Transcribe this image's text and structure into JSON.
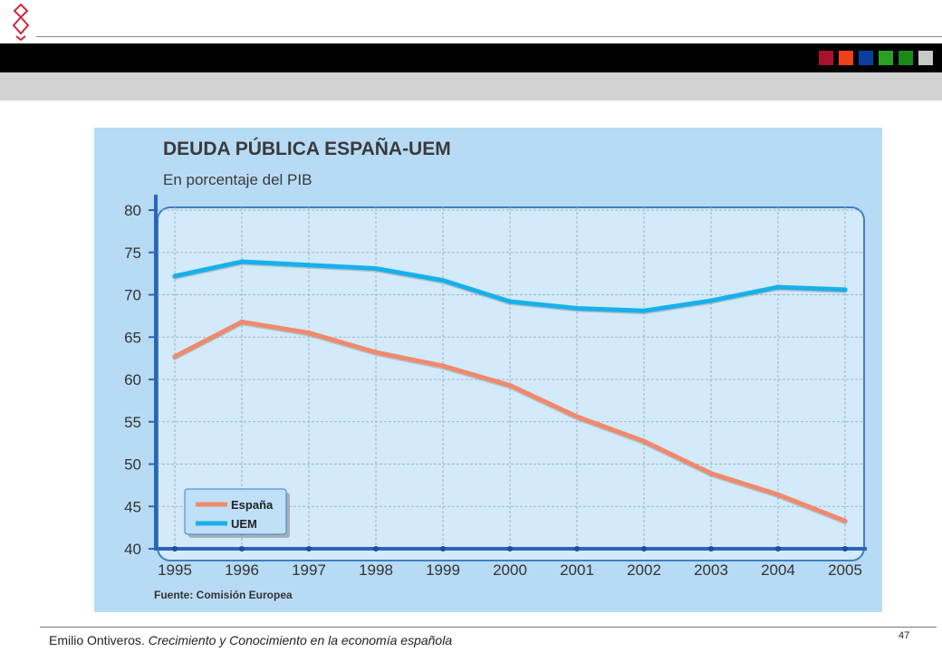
{
  "header": {
    "color_squares": [
      "#a8102b",
      "#f0401a",
      "#0a3fa0",
      "#2aa022",
      "#1a8a1a",
      "#c8c8c8"
    ]
  },
  "chart_data": {
    "type": "line",
    "title": "DEUDA PÚBLICA ESPAÑA-UEM",
    "subtitle": "En porcentaje del PIB",
    "source": "Fuente: Comisión Europea",
    "x": [
      1995,
      1996,
      1997,
      1998,
      1999,
      2000,
      2001,
      2002,
      2003,
      2004,
      2005
    ],
    "x_tick_labels": [
      "1995",
      "1996",
      "1997",
      "1998",
      "1999",
      "2000",
      "2001",
      "2002",
      "2003",
      "2004",
      "2005"
    ],
    "y_ticks": [
      40,
      45,
      50,
      55,
      60,
      65,
      70,
      75,
      80
    ],
    "ylim": [
      40,
      80
    ],
    "grid": true,
    "legend_position": "bottom-left",
    "series": [
      {
        "name": "España",
        "color": "#ef8a6c",
        "values": [
          62.7,
          66.8,
          65.5,
          63.2,
          61.6,
          59.3,
          55.6,
          52.7,
          48.9,
          46.4,
          43.3
        ]
      },
      {
        "name": "UEM",
        "color": "#18b0ea",
        "values": [
          72.2,
          73.9,
          73.5,
          73.1,
          71.7,
          69.2,
          68.4,
          68.1,
          69.3,
          70.9,
          70.6
        ]
      }
    ]
  },
  "footer": {
    "author": "Emilio Ontiveros. ",
    "book_title": "Crecimiento y Conocimiento en  la economía española",
    "page_number": "47"
  }
}
